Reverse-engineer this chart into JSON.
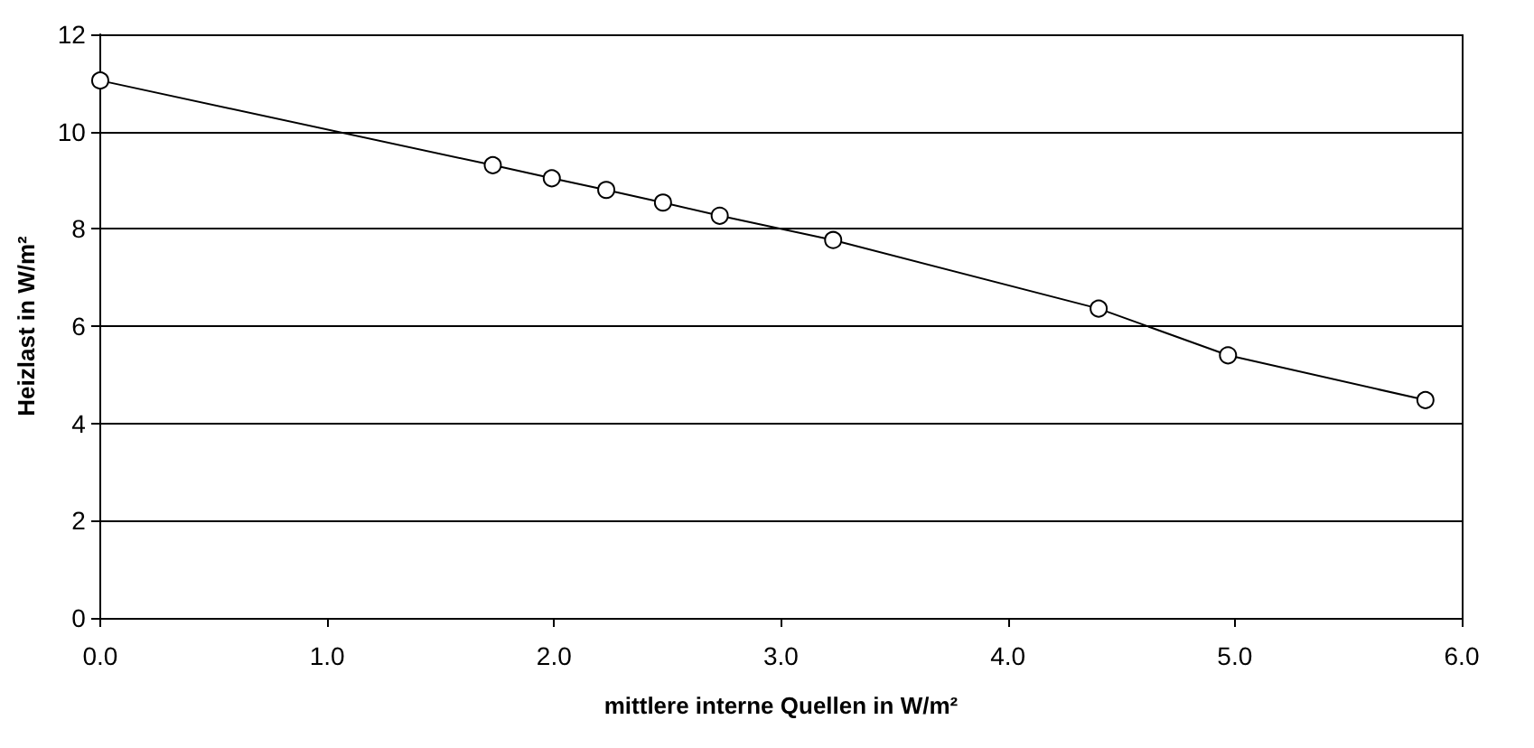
{
  "chart_data": {
    "type": "line",
    "xlabel": "mittlere interne Quellen in W/m²",
    "ylabel": "Heizlast in W/m²",
    "x": [
      0,
      1.73,
      1.99,
      2.23,
      2.48,
      2.73,
      3.23,
      4.4,
      4.97,
      5.84
    ],
    "series": [
      {
        "color": "#000000",
        "values": [
          11.05,
          9.31,
          9.04,
          8.8,
          8.54,
          8.27,
          7.77,
          6.36,
          5.4,
          4.48
        ]
      }
    ],
    "xlim": [
      0,
      6
    ],
    "xticks": [
      {
        "value": 0,
        "label": "0.0"
      },
      {
        "value": 1,
        "label": "1.0"
      },
      {
        "value": 2,
        "label": "2.0"
      },
      {
        "value": 3,
        "label": "3.0"
      },
      {
        "value": 4,
        "label": "4.0"
      },
      {
        "value": 5,
        "label": "5.0"
      },
      {
        "value": 6,
        "label": "6.0"
      }
    ],
    "ylim": [
      0,
      12
    ],
    "yticks": [
      0,
      2,
      4,
      6,
      8,
      10,
      12
    ],
    "grid": "y",
    "marker": "circle",
    "line_style": "solid",
    "legend": false
  }
}
